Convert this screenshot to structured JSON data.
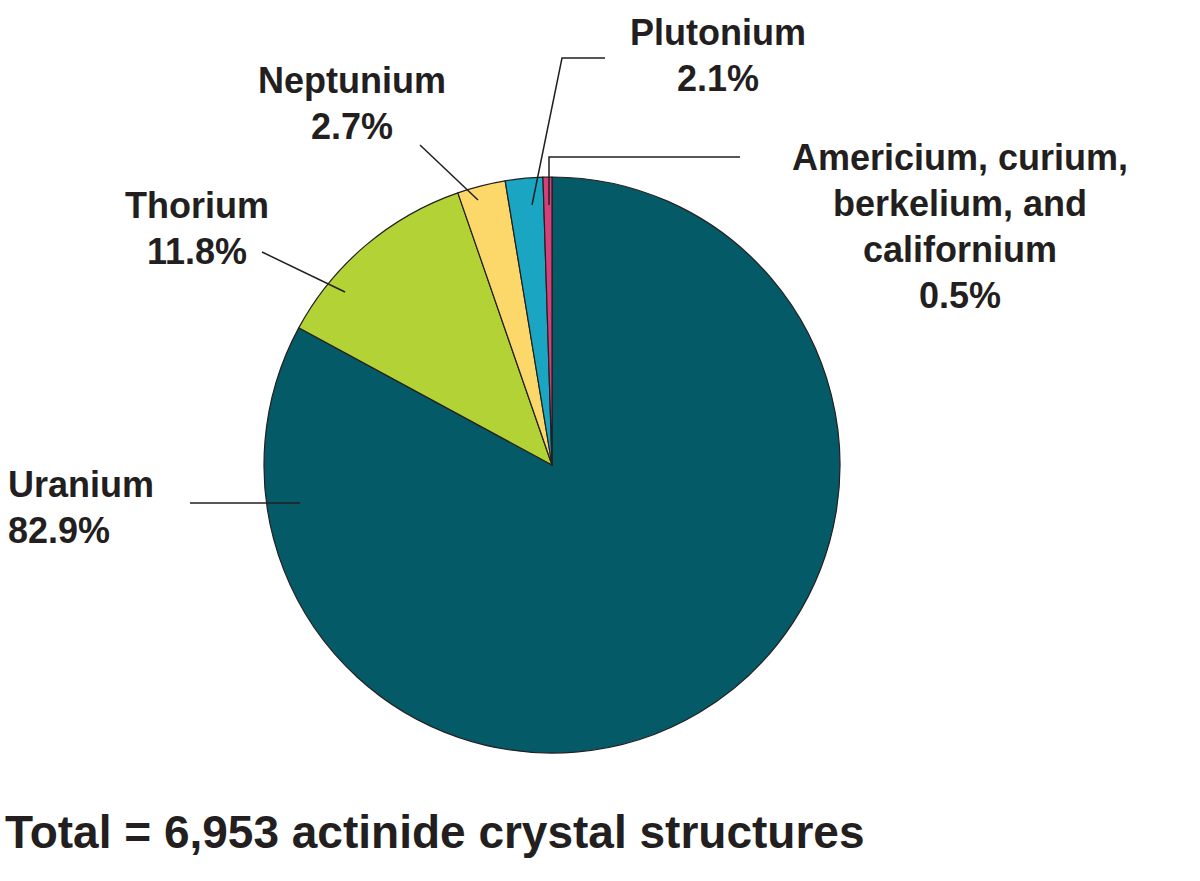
{
  "chart_data": {
    "type": "pie",
    "title": "Total = 6,953 actinide crystal structures",
    "categories": [
      "Uranium",
      "Thorium",
      "Neptunium",
      "Plutonium",
      "Americium, curium, berkelium, and californium"
    ],
    "values": [
      82.9,
      11.8,
      2.7,
      2.1,
      0.5
    ],
    "value_labels": [
      "82.9%",
      "11.8%",
      "2.7%",
      "2.1%",
      "0.5%"
    ],
    "colors": [
      "#055a68",
      "#b3d235",
      "#fcd86b",
      "#1aa6c3",
      "#d63f7a"
    ],
    "data_labels": true
  }
}
